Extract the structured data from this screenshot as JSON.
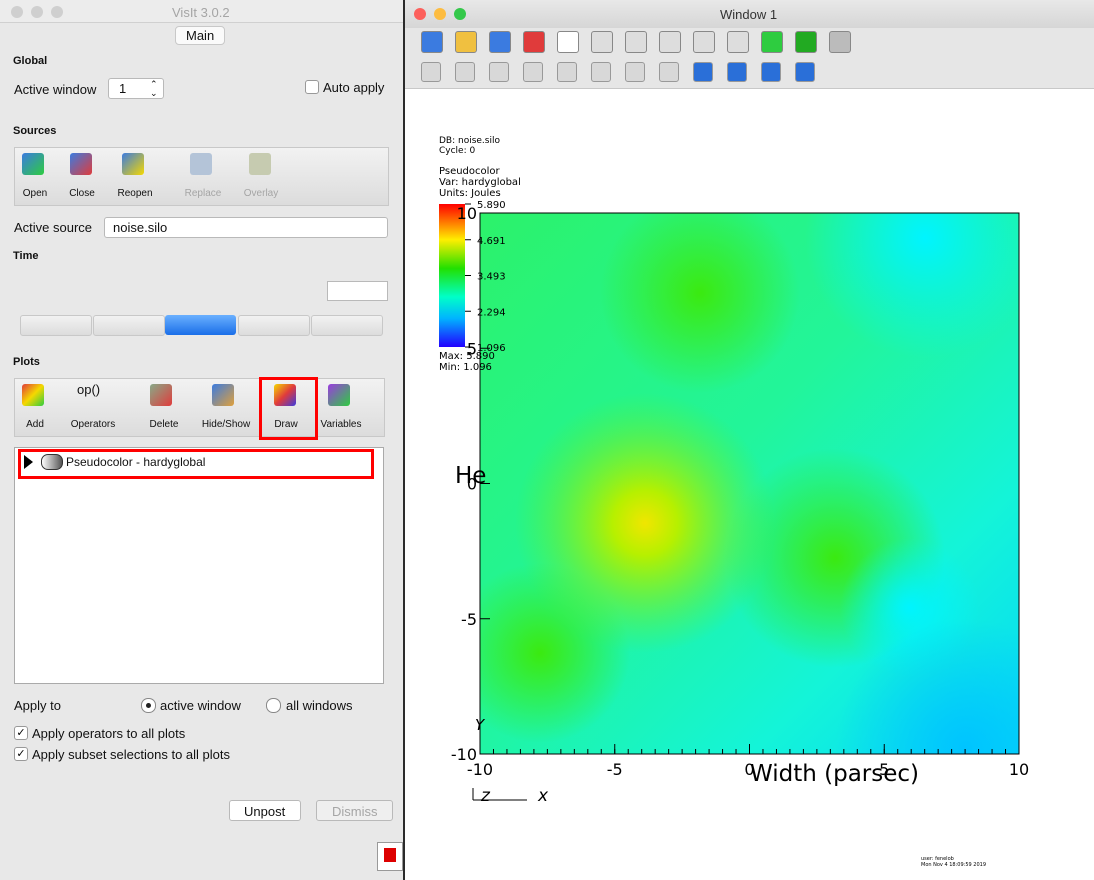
{
  "main_window": {
    "title": "VisIt 3.0.2",
    "tab": "Main",
    "global": {
      "heading": "Global",
      "active_window_label": "Active window",
      "active_window_value": "1",
      "auto_apply": "Auto apply"
    },
    "sources": {
      "heading": "Sources",
      "buttons": [
        "Open",
        "Close",
        "Reopen",
        "Replace",
        "Overlay"
      ],
      "active_source_label": "Active source",
      "active_source_value": "noise.silo"
    },
    "time": {
      "heading": "Time"
    },
    "plots": {
      "heading": "Plots",
      "op_icon": "op()",
      "buttons": [
        "Add",
        "Operators",
        "Delete",
        "Hide/Show",
        "Draw",
        "Variables"
      ],
      "list": [
        "Pseudocolor - hardyglobal"
      ]
    },
    "apply_to": {
      "label": "Apply to",
      "options": [
        "active window",
        "all windows"
      ]
    },
    "checkboxes": [
      "Apply operators to all plots",
      "Apply subset selections to all plots"
    ],
    "footer_buttons": [
      "Unpost",
      "Dismiss"
    ]
  },
  "viewer_window": {
    "title": "Window 1",
    "plot": {
      "db": "DB: noise.silo",
      "cycle": "Cycle: 0",
      "plot_name": "Pseudocolor",
      "var": "Var: hardyglobal",
      "units": "Units: Joules",
      "legend_ticks": [
        "5.890",
        "4.691",
        "3.493",
        "2.294",
        "1.096"
      ],
      "max": "Max: 5.890",
      "min": "Min: 1.096",
      "x_ticks": [
        "-10",
        "-5",
        "0",
        "5",
        "10"
      ],
      "y_ticks": [
        "10",
        "5",
        "0",
        "-5",
        "-10"
      ],
      "x_label": "Width (parsec)",
      "y_label": "He",
      "triad": [
        "Y",
        "z",
        "x"
      ],
      "user": "user: fenelob",
      "date": "Mon Nov 4 18:09:59 2019"
    }
  }
}
